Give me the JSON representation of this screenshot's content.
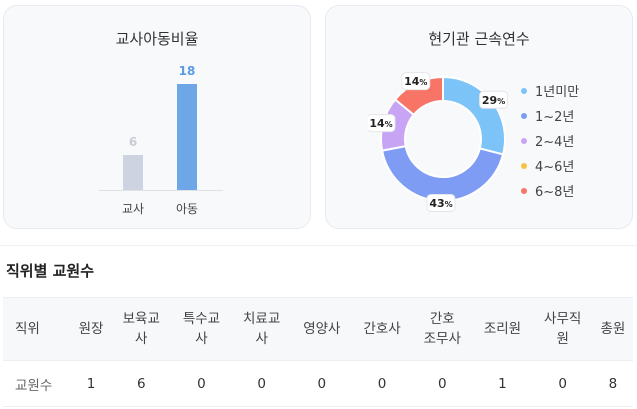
{
  "ratio_card": {
    "title": "교사아동비율",
    "chart_data": {
      "type": "bar",
      "categories": [
        "교사",
        "아동"
      ],
      "values": [
        6,
        18
      ],
      "labels": [
        "6",
        "18"
      ],
      "colors": [
        "#cdd3e1",
        "#6ea7e8"
      ],
      "label_colors": [
        "#c7ccd6",
        "#5b9be4"
      ]
    }
  },
  "tenure_card": {
    "title": "현기관 근속연수",
    "chart_data": {
      "type": "pie",
      "categories": [
        "1년미만",
        "1~2년",
        "2~4년",
        "4~6년",
        "6~8년"
      ],
      "values": [
        29,
        43,
        14,
        0,
        14
      ],
      "labels": [
        "29",
        "43",
        "14",
        "",
        "14"
      ],
      "unit": "%",
      "colors": [
        "#7cc3f7",
        "#7f9cf5",
        "#c8a4f4",
        "#f6c244",
        "#f87466"
      ]
    }
  },
  "staff_section": {
    "title": "직위별 교원수",
    "columns": [
      "직위",
      "원장",
      "보육교\n사",
      "특수교\n사",
      "치료교\n사",
      "영양사",
      "간호사",
      "간호\n조무사",
      "조리원",
      "사무직\n원",
      "총원"
    ],
    "row_label": "교원수",
    "row_values": [
      "1",
      "6",
      "0",
      "0",
      "0",
      "0",
      "0",
      "1",
      "0",
      "8"
    ]
  }
}
